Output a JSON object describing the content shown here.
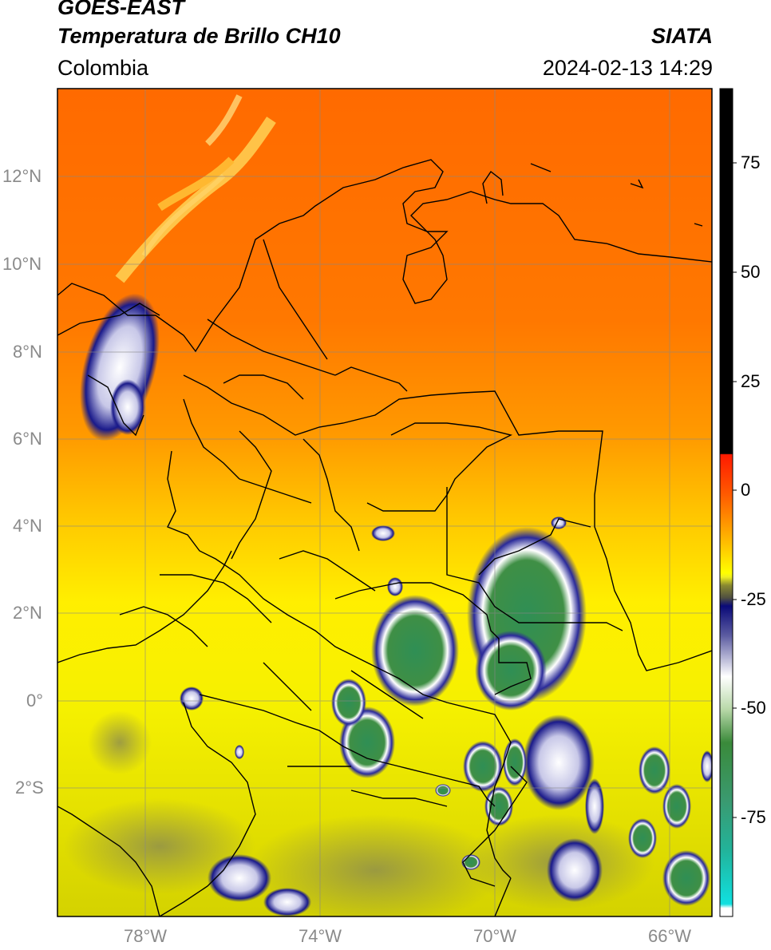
{
  "header": {
    "satellite": "GOES-EAST",
    "product": "Temperatura de Brillo CH10",
    "region": "Colombia",
    "source": "SIATA",
    "datetime": "2024-02-13 14:29"
  },
  "map": {
    "lat_labels": [
      "12°N",
      "10°N",
      "8°N",
      "6°N",
      "4°N",
      "2°N",
      "0°",
      "2°S"
    ],
    "lon_labels": [
      "78°W",
      "74°W",
      "70°W",
      "66°W"
    ],
    "extent": {
      "lon_min": -80,
      "lon_max": -65,
      "lat_min": -5,
      "lat_max": 14
    }
  },
  "colorbar": {
    "ticks": [
      "75",
      "50",
      "25",
      "0",
      "-25",
      "-50",
      "-75"
    ],
    "tick_values": [
      75,
      50,
      25,
      0,
      -25,
      -50,
      -75
    ],
    "range": [
      -100,
      90
    ],
    "colors": {
      "black": "#000000",
      "red": "#ff1a00",
      "orange": "#ff7a00",
      "yellow": "#ffff00",
      "olive": "#8a8a30",
      "navy": "#0a0a78",
      "white": "#ffffff",
      "green": "#3a8a3a",
      "teal": "#22b39a",
      "cyan": "#10e0e0"
    }
  }
}
